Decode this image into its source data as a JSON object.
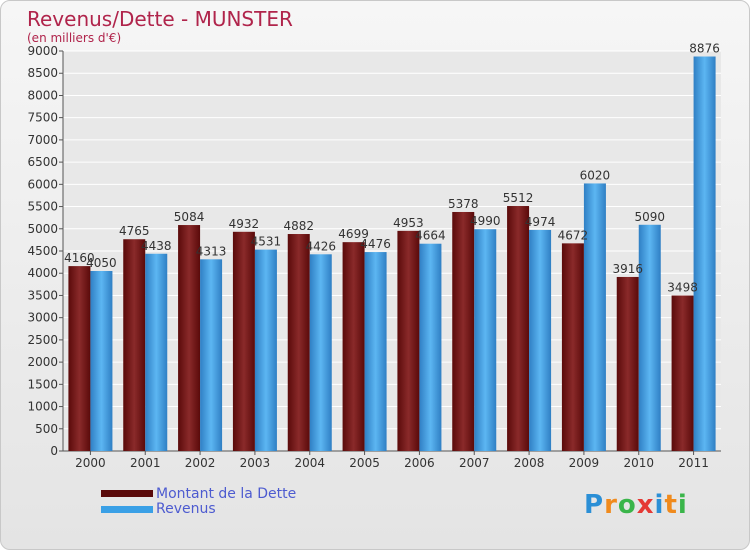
{
  "title": "Revenus/Dette - MUNSTER",
  "subtitle": "(en milliers d'€)",
  "legend": {
    "debt": "Montant de la Dette",
    "revenue": "Revenus"
  },
  "logo": {
    "text": "Proxiti",
    "letter_colors": [
      "#2b8fd6",
      "#f08a1c",
      "#3ab54a",
      "#e53935",
      "#2b8fd6",
      "#f08a1c",
      "#3ab54a"
    ]
  },
  "colors": {
    "debt": "#6e1418",
    "revenue": "#3aa0e6",
    "grid": "#ffffff",
    "background": "#ececec"
  },
  "chart_data": {
    "type": "bar",
    "categories": [
      "2000",
      "2001",
      "2002",
      "2003",
      "2004",
      "2005",
      "2006",
      "2007",
      "2008",
      "2009",
      "2010",
      "2011"
    ],
    "series": [
      {
        "name": "Montant de la Dette",
        "values": [
          4160,
          4765,
          5084,
          4932,
          4882,
          4699,
          4953,
          5378,
          5512,
          4672,
          3916,
          3498
        ]
      },
      {
        "name": "Revenus",
        "values": [
          4050,
          4438,
          4313,
          4531,
          4426,
          4476,
          4664,
          4990,
          4974,
          6020,
          5090,
          8876
        ]
      }
    ],
    "y_ticks": [
      0,
      500,
      1000,
      1500,
      2000,
      2500,
      3000,
      3500,
      4000,
      4500,
      5000,
      5500,
      6000,
      6500,
      7000,
      7500,
      8000,
      8500,
      9000
    ],
    "ylim": [
      0,
      9000
    ],
    "grid": true,
    "legend_position": "bottom-left"
  }
}
